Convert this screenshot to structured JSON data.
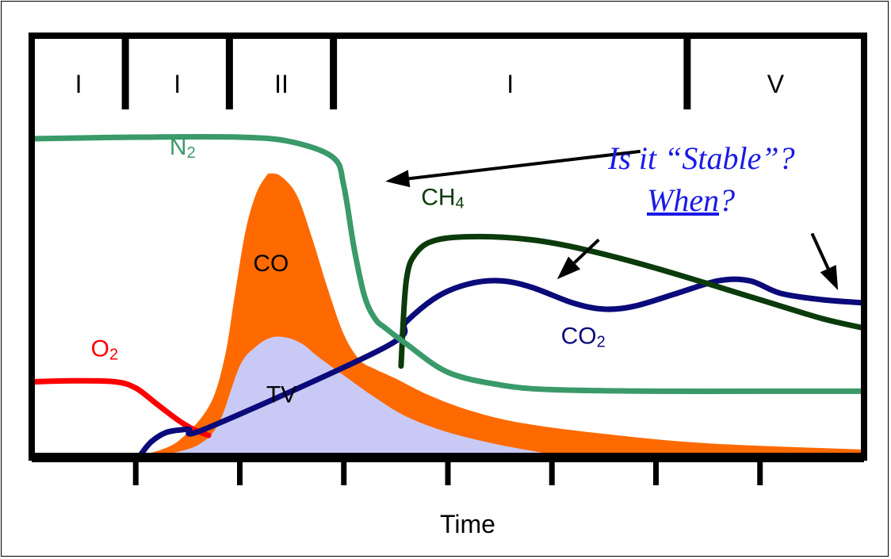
{
  "chart_data": {
    "type": "area",
    "title": "",
    "xlabel": "Time",
    "ylabel": "",
    "phases": [
      "I",
      "I",
      "II",
      "I",
      "V"
    ],
    "phase_bounds": [
      0,
      0.9,
      1.9,
      2.9,
      6.3,
      8.0
    ],
    "xlim": [
      0,
      8
    ],
    "ylim": [
      0,
      100
    ],
    "x_ticks": [
      1,
      2,
      3,
      4,
      5,
      6,
      7
    ],
    "grid": false,
    "series": [
      {
        "name": "N2",
        "kind": "line",
        "color": "#3a9a6a",
        "label_x": 1.45,
        "label_y": 95,
        "points": [
          [
            0,
            100
          ],
          [
            1.0,
            100.5
          ],
          [
            2.0,
            100.5
          ],
          [
            2.5,
            99
          ],
          [
            2.9,
            94
          ],
          [
            3.0,
            85
          ],
          [
            3.1,
            65
          ],
          [
            3.2,
            50
          ],
          [
            3.3,
            43
          ],
          [
            3.4,
            40
          ],
          [
            3.6,
            35
          ],
          [
            4.0,
            26
          ],
          [
            4.5,
            22
          ],
          [
            5,
            20.5
          ],
          [
            6,
            20
          ],
          [
            7,
            20
          ],
          [
            8,
            20
          ]
        ]
      },
      {
        "name": "CO",
        "kind": "area",
        "color": "#ff6a00",
        "label_x": 2.3,
        "label_y": 58,
        "points": [
          [
            1.1,
            0
          ],
          [
            1.4,
            4
          ],
          [
            1.7,
            15
          ],
          [
            1.85,
            30
          ],
          [
            1.95,
            50
          ],
          [
            2.05,
            70
          ],
          [
            2.15,
            82
          ],
          [
            2.25,
            88
          ],
          [
            2.3,
            89
          ],
          [
            2.4,
            88
          ],
          [
            2.55,
            82
          ],
          [
            2.7,
            68
          ],
          [
            2.85,
            52
          ],
          [
            3.0,
            38
          ],
          [
            3.15,
            30
          ],
          [
            3.3,
            27
          ],
          [
            3.5,
            24
          ],
          [
            3.8,
            19
          ],
          [
            4.2,
            14
          ],
          [
            4.7,
            10
          ],
          [
            5.5,
            6.5
          ],
          [
            6.5,
            3.5
          ],
          [
            8,
            1.5
          ]
        ]
      },
      {
        "name": "TV",
        "kind": "area",
        "color": "#c9c9f5",
        "label_x": 2.4,
        "label_y": 16.5,
        "points": [
          [
            1.3,
            0
          ],
          [
            1.6,
            3
          ],
          [
            1.8,
            10
          ],
          [
            2.0,
            28
          ],
          [
            2.15,
            34
          ],
          [
            2.3,
            37
          ],
          [
            2.45,
            37
          ],
          [
            2.6,
            35
          ],
          [
            2.75,
            31
          ],
          [
            3.0,
            25
          ],
          [
            3.3,
            18
          ],
          [
            3.6,
            12
          ],
          [
            4.0,
            7
          ],
          [
            4.5,
            3
          ],
          [
            5.0,
            0
          ]
        ]
      },
      {
        "name": "O2",
        "kind": "line",
        "color": "#ff0000",
        "label_x": 0.7,
        "label_y": 31,
        "points": [
          [
            0,
            23
          ],
          [
            0.4,
            23.3
          ],
          [
            0.8,
            23
          ],
          [
            1.0,
            21
          ],
          [
            1.2,
            16
          ],
          [
            1.4,
            11
          ],
          [
            1.55,
            8
          ],
          [
            1.7,
            6
          ]
        ]
      },
      {
        "name": "CO2",
        "kind": "line",
        "color": "#0a0a7a",
        "label_x": 5.3,
        "label_y": 35,
        "points": [
          [
            1.05,
            0
          ],
          [
            1.15,
            4
          ],
          [
            1.3,
            7
          ],
          [
            1.5,
            8
          ],
          [
            1.7,
            8.5
          ],
          [
            3.4,
            34
          ],
          [
            3.6,
            42
          ],
          [
            3.9,
            50
          ],
          [
            4.2,
            54
          ],
          [
            4.5,
            55
          ],
          [
            4.8,
            53
          ],
          [
            5.2,
            48
          ],
          [
            5.5,
            46
          ],
          [
            5.8,
            47
          ],
          [
            6.2,
            51
          ],
          [
            6.6,
            55
          ],
          [
            6.9,
            55
          ],
          [
            7.2,
            51
          ],
          [
            7.6,
            49
          ],
          [
            8,
            48
          ]
        ]
      },
      {
        "name": "CH4",
        "kind": "line",
        "color": "#0b3b0b",
        "label_x": 3.95,
        "label_y": 79,
        "points": [
          [
            3.55,
            28
          ],
          [
            3.6,
            55
          ],
          [
            3.7,
            64
          ],
          [
            3.9,
            68
          ],
          [
            4.3,
            69
          ],
          [
            4.8,
            68
          ],
          [
            5.3,
            65
          ],
          [
            6.0,
            59
          ],
          [
            7.0,
            49
          ],
          [
            7.6,
            43
          ],
          [
            8,
            40
          ]
        ]
      }
    ],
    "annotation": {
      "line1": "Is it “Stable”?",
      "line2_underlined": "When",
      "line2_rest": "?",
      "color": "#1a1ae6"
    },
    "arrows": [
      {
        "from": [
          5.85,
          96
        ],
        "to": [
          3.4,
          86.5
        ]
      },
      {
        "from": [
          5.45,
          68
        ],
        "to": [
          5.05,
          55.5
        ]
      },
      {
        "from": [
          7.5,
          70
        ],
        "to": [
          7.75,
          52
        ]
      }
    ]
  }
}
